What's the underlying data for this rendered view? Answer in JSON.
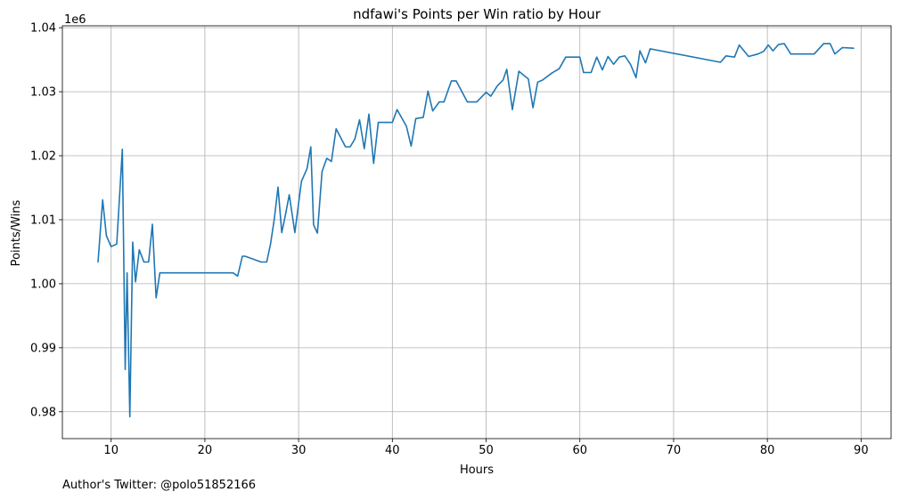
{
  "footer": {
    "credit": "Author's Twitter: @polo51852166"
  },
  "colors": {
    "line": "#1f77b4",
    "grid": "#b0b0b0",
    "axes": "#000000",
    "background": "#ffffff"
  },
  "chart_data": {
    "type": "line",
    "title": "ndfawi's Points per Win ratio by Hour",
    "xlabel": "Hours",
    "ylabel": "Points/Wins",
    "offset_label": "1e6",
    "xlim": [
      4.8,
      93.2
    ],
    "ylim": [
      975.8,
      1040.3
    ],
    "y_scale_factor": 1000000,
    "x_ticks": [
      10,
      20,
      30,
      40,
      50,
      60,
      70,
      80,
      90
    ],
    "x_tick_labels": [
      "10",
      "20",
      "30",
      "40",
      "50",
      "60",
      "70",
      "80",
      "90"
    ],
    "y_ticks": [
      980,
      990,
      1000,
      1010,
      1020,
      1030,
      1040
    ],
    "y_tick_labels": [
      "0.98",
      "0.99",
      "1.00",
      "1.01",
      "1.02",
      "1.03",
      "1.04"
    ],
    "grid": true,
    "series": [
      {
        "x": [
          8.6,
          9.1,
          9.5,
          10.0,
          10.6,
          11.2,
          11.5,
          11.7,
          12.0,
          12.3,
          12.6,
          13.0,
          13.5,
          14.0,
          14.4,
          14.8,
          15.2,
          15.6,
          22.0,
          23.0,
          23.5,
          24.0,
          24.3,
          26.0,
          26.6,
          27.0,
          27.4,
          27.8,
          28.2,
          28.6,
          29.0,
          29.6,
          30.3,
          30.9,
          31.3,
          31.6,
          32.0,
          32.5,
          33.0,
          33.5,
          34.0,
          35.0,
          35.5,
          36.0,
          36.5,
          37.0,
          37.5,
          38.0,
          38.5,
          40.0,
          40.5,
          41.5,
          42.0,
          42.5,
          43.3,
          43.8,
          44.3,
          45.0,
          45.5,
          46.3,
          46.8,
          48.0,
          49.0,
          50.0,
          50.5,
          51.2,
          51.8,
          52.2,
          52.8,
          53.5,
          54.5,
          55.0,
          55.5,
          56.0,
          57.0,
          57.8,
          58.5,
          59.0,
          60.0,
          60.4,
          61.2,
          61.8,
          62.4,
          63.0,
          63.6,
          64.2,
          64.8,
          65.4,
          66.0,
          66.4,
          67.0,
          67.5,
          75.0,
          75.6,
          76.5,
          77.0,
          78.0,
          79.0,
          79.6,
          80.1,
          80.6,
          81.2,
          81.8,
          82.5,
          85.0,
          86.0,
          86.7,
          87.2,
          88.0,
          89.2
        ],
        "y": [
          1003.4,
          1013.1,
          1007.5,
          1005.8,
          1006.2,
          1021.0,
          986.6,
          1001.7,
          979.2,
          1006.5,
          1000.3,
          1005.3,
          1003.4,
          1003.4,
          1009.3,
          997.8,
          1001.7,
          1001.7,
          1001.7,
          1001.7,
          1001.2,
          1004.3,
          1004.3,
          1003.4,
          1003.4,
          1006.2,
          1010.1,
          1015.1,
          1008.0,
          1010.8,
          1013.9,
          1008.0,
          1016.0,
          1018.0,
          1021.4,
          1009.2,
          1007.9,
          1017.5,
          1019.6,
          1019.1,
          1024.2,
          1021.4,
          1021.4,
          1022.6,
          1025.6,
          1021.1,
          1026.5,
          1018.8,
          1025.2,
          1025.2,
          1027.2,
          1024.6,
          1021.5,
          1025.8,
          1026.0,
          1030.1,
          1027.0,
          1028.4,
          1028.4,
          1031.7,
          1031.7,
          1028.4,
          1028.4,
          1029.9,
          1029.3,
          1030.9,
          1031.8,
          1033.5,
          1027.2,
          1033.2,
          1032.0,
          1027.5,
          1031.5,
          1031.8,
          1032.9,
          1033.6,
          1035.4,
          1035.4,
          1035.4,
          1033.0,
          1033.0,
          1035.4,
          1033.4,
          1035.5,
          1034.3,
          1035.4,
          1035.6,
          1034.3,
          1032.2,
          1036.4,
          1034.5,
          1036.7,
          1034.6,
          1035.6,
          1035.4,
          1037.3,
          1035.5,
          1035.9,
          1036.3,
          1037.3,
          1036.4,
          1037.4,
          1037.5,
          1035.9,
          1035.9,
          1037.5,
          1037.5,
          1035.9,
          1036.9,
          1036.8
        ]
      }
    ]
  }
}
